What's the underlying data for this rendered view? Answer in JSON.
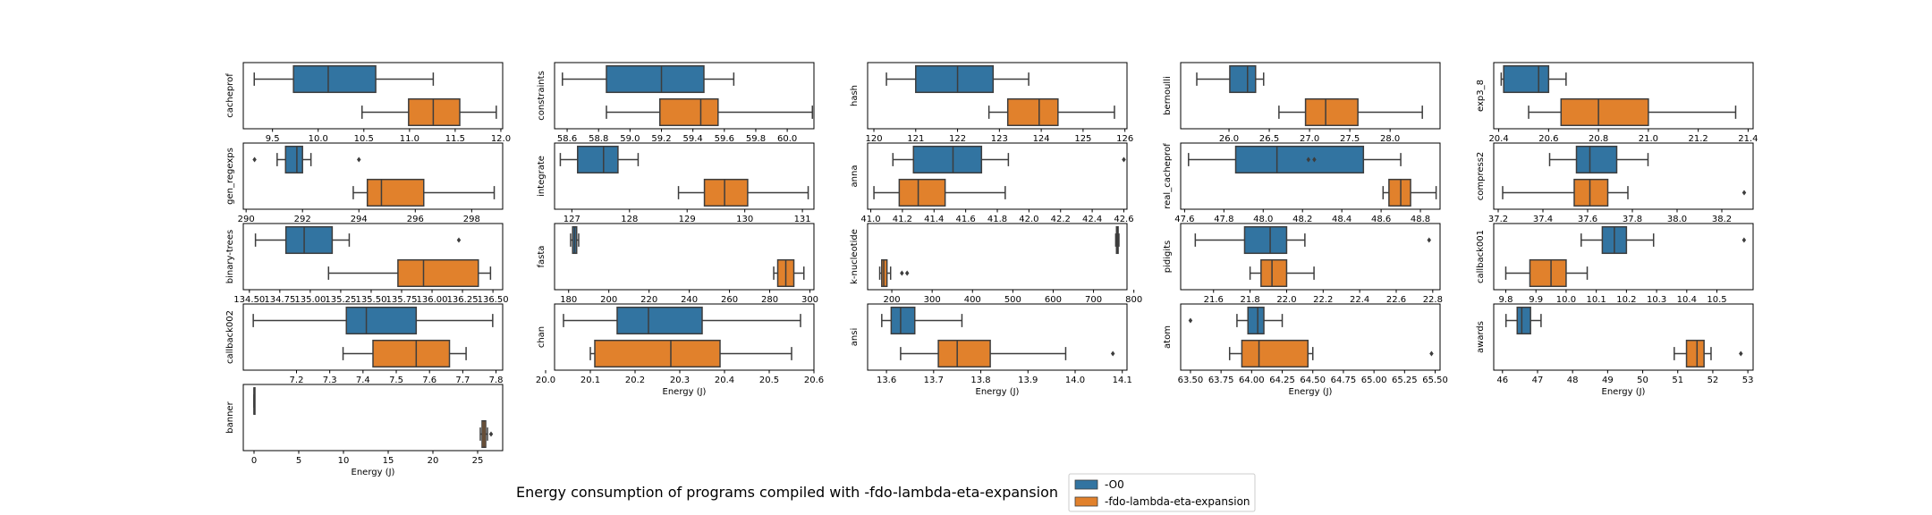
{
  "title": "Energy consumption of programs compiled with -fdo-lambda-eta-expansion",
  "legend": [
    {
      "label": "-O0",
      "color": "#3274a1"
    },
    {
      "label": "-fdo-lambda-eta-expansion",
      "color": "#e1812c"
    }
  ],
  "xlabel": "Energy (J)",
  "chart_data": [
    {
      "type": "box",
      "name": "cacheprof",
      "ylabel": "cacheprof",
      "xlabel": "",
      "xlim": [
        9.18,
        12.02
      ],
      "ticks": [
        9.5,
        10.0,
        10.5,
        11.0,
        11.5,
        12.0
      ],
      "tick_labels": [
        "9.5",
        "10.0",
        "10.5",
        "11.0",
        "11.5",
        "12.0"
      ],
      "series": [
        {
          "name": "-O0",
          "whislo": 9.3,
          "q1": 9.73,
          "med": 10.11,
          "q3": 10.63,
          "whishi": 11.26,
          "fliers": []
        },
        {
          "name": "-fdo-lambda-eta-expansion",
          "whislo": 10.48,
          "q1": 10.99,
          "med": 11.26,
          "q3": 11.55,
          "whishi": 11.95,
          "fliers": []
        }
      ]
    },
    {
      "type": "box",
      "name": "constraints",
      "ylabel": "constraints",
      "xlabel": "",
      "xlim": [
        58.52,
        60.17
      ],
      "ticks": [
        58.6,
        58.8,
        59.0,
        59.2,
        59.4,
        59.6,
        59.8,
        60.0
      ],
      "tick_labels": [
        "58.6",
        "58.8",
        "59.0",
        "59.2",
        "59.4",
        "59.6",
        "59.8",
        "60.0"
      ],
      "series": [
        {
          "name": "-O0",
          "whislo": 58.57,
          "q1": 58.85,
          "med": 59.2,
          "q3": 59.47,
          "whishi": 59.66,
          "fliers": []
        },
        {
          "name": "-fdo-lambda-eta-expansion",
          "whislo": 58.85,
          "q1": 59.19,
          "med": 59.45,
          "q3": 59.56,
          "whishi": 60.16,
          "fliers": []
        }
      ]
    },
    {
      "type": "box",
      "name": "hash",
      "ylabel": "hash",
      "xlabel": "",
      "xlim": [
        119.85,
        126.05
      ],
      "ticks": [
        120,
        121,
        122,
        123,
        124,
        125,
        126
      ],
      "tick_labels": [
        "120",
        "121",
        "122",
        "123",
        "124",
        "125",
        "126"
      ],
      "series": [
        {
          "name": "-O0",
          "whislo": 120.3,
          "q1": 121.0,
          "med": 122.0,
          "q3": 122.85,
          "whishi": 123.7,
          "fliers": []
        },
        {
          "name": "-fdo-lambda-eta-expansion",
          "whislo": 122.75,
          "q1": 123.2,
          "med": 123.95,
          "q3": 124.4,
          "whishi": 125.75,
          "fliers": []
        }
      ]
    },
    {
      "type": "box",
      "name": "bernoulli",
      "ylabel": "bernoulli",
      "xlabel": "",
      "xlim": [
        25.4,
        28.62
      ],
      "ticks": [
        26.0,
        26.5,
        27.0,
        27.5,
        28.0
      ],
      "tick_labels": [
        "26.0",
        "26.5",
        "27.0",
        "27.5",
        "28.0"
      ],
      "series": [
        {
          "name": "-O0",
          "whislo": 25.6,
          "q1": 26.01,
          "med": 26.23,
          "q3": 26.33,
          "whishi": 26.43,
          "fliers": []
        },
        {
          "name": "-fdo-lambda-eta-expansion",
          "whislo": 26.62,
          "q1": 26.95,
          "med": 27.2,
          "q3": 27.6,
          "whishi": 28.4,
          "fliers": []
        }
      ]
    },
    {
      "type": "box",
      "name": "exp3_8",
      "ylabel": "exp3_8",
      "xlabel": "",
      "xlim": [
        20.38,
        21.42
      ],
      "ticks": [
        20.4,
        20.6,
        20.8,
        21.0,
        21.2,
        21.4
      ],
      "tick_labels": [
        "20.4",
        "20.6",
        "20.8",
        "21.0",
        "21.2",
        "21.4"
      ],
      "series": [
        {
          "name": "-O0",
          "whislo": 20.41,
          "q1": 20.42,
          "med": 20.56,
          "q3": 20.6,
          "whishi": 20.67,
          "fliers": []
        },
        {
          "name": "-fdo-lambda-eta-expansion",
          "whislo": 20.52,
          "q1": 20.65,
          "med": 20.8,
          "q3": 21.0,
          "whishi": 21.35,
          "fliers": []
        }
      ]
    },
    {
      "type": "box",
      "name": "gen_regexps",
      "ylabel": "gen_regexps",
      "xlabel": "",
      "xlim": [
        289.9,
        299.1
      ],
      "ticks": [
        290,
        292,
        294,
        296,
        298
      ],
      "tick_labels": [
        "290",
        "292",
        "294",
        "296",
        "298"
      ],
      "series": [
        {
          "name": "-O0",
          "whislo": 291.1,
          "q1": 291.4,
          "med": 291.8,
          "q3": 292.0,
          "whishi": 292.3,
          "fliers": [
            290.3,
            294.0
          ]
        },
        {
          "name": "-fdo-lambda-eta-expansion",
          "whislo": 293.8,
          "q1": 294.3,
          "med": 294.8,
          "q3": 296.3,
          "whishi": 298.8,
          "fliers": []
        }
      ]
    },
    {
      "type": "box",
      "name": "integrate",
      "ylabel": "integrate",
      "xlabel": "",
      "xlim": [
        126.7,
        131.2
      ],
      "ticks": [
        127,
        128,
        129,
        130,
        131
      ],
      "tick_labels": [
        "127",
        "128",
        "129",
        "130",
        "131"
      ],
      "series": [
        {
          "name": "-O0",
          "whislo": 126.8,
          "q1": 127.1,
          "med": 127.55,
          "q3": 127.8,
          "whishi": 128.15,
          "fliers": []
        },
        {
          "name": "-fdo-lambda-eta-expansion",
          "whislo": 128.85,
          "q1": 129.3,
          "med": 129.65,
          "q3": 130.05,
          "whishi": 131.1,
          "fliers": []
        }
      ]
    },
    {
      "type": "box",
      "name": "anna",
      "ylabel": "anna",
      "xlabel": "",
      "xlim": [
        40.98,
        42.62
      ],
      "ticks": [
        41.0,
        41.2,
        41.4,
        41.6,
        41.8,
        42.0,
        42.2,
        42.4,
        42.6
      ],
      "tick_labels": [
        "41.0",
        "41.2",
        "41.4",
        "41.6",
        "41.8",
        "42.0",
        "42.2",
        "42.4",
        "42.6"
      ],
      "series": [
        {
          "name": "-O0",
          "whislo": 41.14,
          "q1": 41.27,
          "med": 41.52,
          "q3": 41.7,
          "whishi": 41.87,
          "fliers": [
            42.6
          ]
        },
        {
          "name": "-fdo-lambda-eta-expansion",
          "whislo": 41.02,
          "q1": 41.18,
          "med": 41.3,
          "q3": 41.47,
          "whishi": 41.85,
          "fliers": []
        }
      ]
    },
    {
      "type": "box",
      "name": "real_cacheprof",
      "ylabel": "real_cacheprof",
      "xlabel": "",
      "xlim": [
        47.58,
        48.9
      ],
      "ticks": [
        47.6,
        47.8,
        48.0,
        48.2,
        48.4,
        48.6,
        48.8
      ],
      "tick_labels": [
        "47.6",
        "47.8",
        "48.0",
        "48.2",
        "48.4",
        "48.6",
        "48.8"
      ],
      "series": [
        {
          "name": "-O0",
          "whislo": 47.62,
          "q1": 47.86,
          "med": 48.07,
          "q3": 48.51,
          "whishi": 48.7,
          "fliers": [
            48.23,
            48.26
          ]
        },
        {
          "name": "-fdo-lambda-eta-expansion",
          "whislo": 48.61,
          "q1": 48.64,
          "med": 48.7,
          "q3": 48.75,
          "whishi": 48.88,
          "fliers": []
        }
      ]
    },
    {
      "type": "box",
      "name": "compress2",
      "ylabel": "compress2",
      "xlabel": "",
      "xlim": [
        37.18,
        38.34
      ],
      "ticks": [
        37.2,
        37.4,
        37.6,
        37.8,
        38.0,
        38.2
      ],
      "tick_labels": [
        "37.2",
        "37.4",
        "37.6",
        "37.8",
        "38.0",
        "38.2"
      ],
      "series": [
        {
          "name": "-O0",
          "whislo": 37.43,
          "q1": 37.55,
          "med": 37.61,
          "q3": 37.73,
          "whishi": 37.87,
          "fliers": []
        },
        {
          "name": "-fdo-lambda-eta-expansion",
          "whislo": 37.22,
          "q1": 37.54,
          "med": 37.61,
          "q3": 37.69,
          "whishi": 37.78,
          "fliers": [
            38.3
          ]
        }
      ]
    },
    {
      "type": "box",
      "name": "binary-trees",
      "ylabel": "binary-trees",
      "xlabel": "",
      "xlim": [
        134.45,
        136.58
      ],
      "ticks": [
        134.5,
        134.75,
        135.0,
        135.25,
        135.5,
        135.75,
        136.0,
        136.25,
        136.5
      ],
      "tick_labels": [
        "134.50",
        "134.75",
        "135.00",
        "135.25",
        "135.50",
        "135.75",
        "136.00",
        "136.25",
        "136.50"
      ],
      "series": [
        {
          "name": "-O0",
          "whislo": 134.55,
          "q1": 134.8,
          "med": 134.95,
          "q3": 135.18,
          "whishi": 135.32,
          "fliers": [
            136.22
          ]
        },
        {
          "name": "-fdo-lambda-eta-expansion",
          "whislo": 135.15,
          "q1": 135.72,
          "med": 135.93,
          "q3": 136.38,
          "whishi": 136.48,
          "fliers": []
        }
      ]
    },
    {
      "type": "box",
      "name": "fasta",
      "ylabel": "fasta",
      "xlabel": "",
      "xlim": [
        173,
        302
      ],
      "ticks": [
        180,
        200,
        220,
        240,
        260,
        280,
        300
      ],
      "tick_labels": [
        "180",
        "200",
        "220",
        "240",
        "260",
        "280",
        "300"
      ],
      "series": [
        {
          "name": "-O0",
          "whislo": 181.0,
          "q1": 182.0,
          "med": 183.0,
          "q3": 184.0,
          "whishi": 185.0,
          "fliers": []
        },
        {
          "name": "-fdo-lambda-eta-expansion",
          "whislo": 282.0,
          "q1": 284.0,
          "med": 288.0,
          "q3": 292.0,
          "whishi": 297.0,
          "fliers": []
        }
      ]
    },
    {
      "type": "box",
      "name": "k-nucleotide",
      "ylabel": "k-nucleotide",
      "xlabel": "",
      "xlim": [
        140,
        783
      ],
      "ticks": [
        200,
        300,
        400,
        500,
        600,
        700,
        800
      ],
      "tick_labels": [
        "200",
        "300",
        "400",
        "500",
        "600",
        "700",
        "800"
      ],
      "series": [
        {
          "name": "-O0",
          "whislo": 755.0,
          "q1": 757.0,
          "med": 759.0,
          "q3": 761.0,
          "whishi": 763.0,
          "fliers": []
        },
        {
          "name": "-fdo-lambda-eta-expansion",
          "whislo": 170.0,
          "q1": 175.0,
          "med": 180.0,
          "q3": 188.0,
          "whishi": 197.0,
          "fliers": [
            225.0,
            238.0
          ]
        }
      ]
    },
    {
      "type": "box",
      "name": "pidigits",
      "ylabel": "pidigits",
      "xlabel": "",
      "xlim": [
        21.42,
        22.84
      ],
      "ticks": [
        21.6,
        21.8,
        22.0,
        22.2,
        22.4,
        22.6,
        22.8
      ],
      "tick_labels": [
        "21.6",
        "21.8",
        "22.0",
        "22.2",
        "22.4",
        "22.6",
        "22.8"
      ],
      "series": [
        {
          "name": "-O0",
          "whislo": 21.5,
          "q1": 21.77,
          "med": 21.91,
          "q3": 22.0,
          "whishi": 22.1,
          "fliers": [
            22.78
          ]
        },
        {
          "name": "-fdo-lambda-eta-expansion",
          "whislo": 21.8,
          "q1": 21.86,
          "med": 21.92,
          "q3": 22.0,
          "whishi": 22.15,
          "fliers": []
        }
      ]
    },
    {
      "type": "box",
      "name": "callback001",
      "ylabel": "callback001",
      "xlabel": "",
      "xlim": [
        9.76,
        10.62
      ],
      "ticks": [
        9.8,
        9.9,
        10.0,
        10.1,
        10.2,
        10.3,
        10.4,
        10.5
      ],
      "tick_labels": [
        "9.8",
        "9.9",
        "10.0",
        "10.1",
        "10.2",
        "10.3",
        "10.4",
        "10.5"
      ],
      "series": [
        {
          "name": "-O0",
          "whislo": 10.05,
          "q1": 10.12,
          "med": 10.16,
          "q3": 10.2,
          "whishi": 10.29,
          "fliers": [
            10.59
          ]
        },
        {
          "name": "-fdo-lambda-eta-expansion",
          "whislo": 9.8,
          "q1": 9.88,
          "med": 9.95,
          "q3": 10.0,
          "whishi": 10.07,
          "fliers": []
        }
      ]
    },
    {
      "type": "box",
      "name": "callback002",
      "ylabel": "callback002",
      "xlabel": "",
      "xlim": [
        7.04,
        7.82
      ],
      "ticks": [
        7.2,
        7.3,
        7.4,
        7.5,
        7.6,
        7.7,
        7.8
      ],
      "tick_labels": [
        "7.2",
        "7.3",
        "7.4",
        "7.5",
        "7.6",
        "7.7",
        "7.8"
      ],
      "series": [
        {
          "name": "-O0",
          "whislo": 7.07,
          "q1": 7.35,
          "med": 7.41,
          "q3": 7.56,
          "whishi": 7.79,
          "fliers": []
        },
        {
          "name": "-fdo-lambda-eta-expansion",
          "whislo": 7.34,
          "q1": 7.43,
          "med": 7.56,
          "q3": 7.66,
          "whishi": 7.71,
          "fliers": []
        }
      ]
    },
    {
      "type": "box",
      "name": "chan",
      "ylabel": "chan",
      "xlabel": "Energy (J)",
      "xlim": [
        20.02,
        20.6
      ],
      "ticks": [
        20.0,
        20.1,
        20.2,
        20.3,
        20.4,
        20.5,
        20.6
      ],
      "tick_labels": [
        "20.0",
        "20.1",
        "20.2",
        "20.3",
        "20.4",
        "20.5",
        "20.6"
      ],
      "series": [
        {
          "name": "-O0",
          "whislo": 20.04,
          "q1": 20.16,
          "med": 20.23,
          "q3": 20.35,
          "whishi": 20.57,
          "fliers": []
        },
        {
          "name": "-fdo-lambda-eta-expansion",
          "whislo": 20.1,
          "q1": 20.11,
          "med": 20.28,
          "q3": 20.39,
          "whishi": 20.55,
          "fliers": []
        }
      ]
    },
    {
      "type": "box",
      "name": "ansi",
      "ylabel": "ansi",
      "xlabel": "Energy (J)",
      "xlim": [
        13.56,
        14.11
      ],
      "ticks": [
        13.6,
        13.7,
        13.8,
        13.9,
        14.0,
        14.1
      ],
      "tick_labels": [
        "13.6",
        "13.7",
        "13.8",
        "13.9",
        "14.0",
        "14.1"
      ],
      "series": [
        {
          "name": "-O0",
          "whislo": 13.59,
          "q1": 13.61,
          "med": 13.63,
          "q3": 13.66,
          "whishi": 13.76,
          "fliers": []
        },
        {
          "name": "-fdo-lambda-eta-expansion",
          "whislo": 13.63,
          "q1": 13.71,
          "med": 13.75,
          "q3": 13.82,
          "whishi": 13.98,
          "fliers": [
            14.08
          ]
        }
      ]
    },
    {
      "type": "box",
      "name": "atom",
      "ylabel": "atom",
      "xlabel": "Energy (J)",
      "xlim": [
        63.42,
        65.54
      ],
      "ticks": [
        63.5,
        63.75,
        64.0,
        64.25,
        64.5,
        64.75,
        65.0,
        65.25,
        65.5
      ],
      "tick_labels": [
        "63.50",
        "63.75",
        "64.00",
        "64.25",
        "64.50",
        "64.75",
        "65.00",
        "65.25",
        "65.50"
      ],
      "series": [
        {
          "name": "-O0",
          "whislo": 63.88,
          "q1": 63.97,
          "med": 64.05,
          "q3": 64.1,
          "whishi": 64.25,
          "fliers": [
            63.5
          ]
        },
        {
          "name": "-fdo-lambda-eta-expansion",
          "whislo": 63.82,
          "q1": 63.92,
          "med": 64.06,
          "q3": 64.46,
          "whishi": 64.5,
          "fliers": [
            65.47
          ]
        }
      ]
    },
    {
      "type": "box",
      "name": "awards",
      "ylabel": "awards",
      "xlabel": "Energy (J)",
      "xlim": [
        45.75,
        53.15
      ],
      "ticks": [
        46,
        47,
        48,
        49,
        50,
        51,
        52,
        53
      ],
      "tick_labels": [
        "46",
        "47",
        "48",
        "49",
        "50",
        "51",
        "52",
        "53"
      ],
      "series": [
        {
          "name": "-O0",
          "whislo": 46.1,
          "q1": 46.42,
          "med": 46.55,
          "q3": 46.8,
          "whishi": 47.1,
          "fliers": []
        },
        {
          "name": "-fdo-lambda-eta-expansion",
          "whislo": 50.9,
          "q1": 51.25,
          "med": 51.55,
          "q3": 51.75,
          "whishi": 51.95,
          "fliers": [
            52.8
          ]
        }
      ]
    },
    {
      "type": "box",
      "name": "banner",
      "ylabel": "banner",
      "xlabel": "Energy (J)",
      "xlim": [
        -1.2,
        27.8
      ],
      "ticks": [
        0,
        5,
        10,
        15,
        20,
        25
      ],
      "tick_labels": [
        "0",
        "5",
        "10",
        "15",
        "20",
        "25"
      ],
      "series": [
        {
          "name": "-O0",
          "whislo": 0.0,
          "q1": 0.0,
          "med": 0.0,
          "q3": 0.0,
          "whishi": 0.0,
          "fliers": []
        },
        {
          "name": "-fdo-lambda-eta-expansion",
          "whislo": 25.3,
          "q1": 25.5,
          "med": 25.7,
          "q3": 25.9,
          "whishi": 26.1,
          "fliers": [
            26.5
          ]
        }
      ]
    }
  ]
}
